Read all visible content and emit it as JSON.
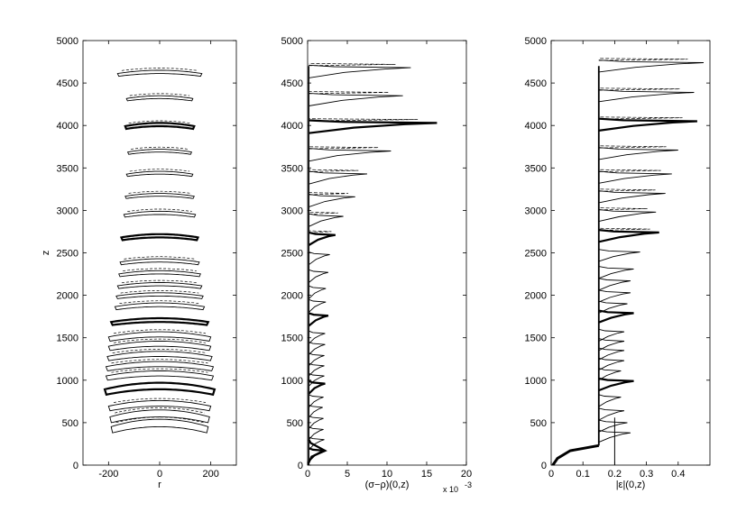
{
  "chart_data": [
    {
      "type": "line",
      "panel": "left",
      "xlabel": "r",
      "ylabel": "z",
      "xlim": [
        -300,
        300
      ],
      "ylim": [
        0,
        5000
      ],
      "xticks": [
        "-200",
        "0",
        "200"
      ],
      "yticks": [
        "0",
        "500",
        "1000",
        "1500",
        "2000",
        "2500",
        "3000",
        "3500",
        "4000",
        "4500",
        "5000"
      ],
      "grid": false,
      "description_series": "stacked bubble-shaped contours at successive times",
      "contours": [
        {
          "z_bottom": 380,
          "z_top": 540,
          "r_max": 190,
          "style": "solid"
        },
        {
          "z_bottom": 500,
          "z_top": 650,
          "r_max": 195,
          "style": "solid"
        },
        {
          "z_bottom": 640,
          "z_top": 760,
          "r_max": 200,
          "style": "solid"
        },
        {
          "z_bottom": 830,
          "z_top": 970,
          "r_max": 215,
          "style": "bold"
        },
        {
          "z_bottom": 1000,
          "z_top": 1110,
          "r_max": 210,
          "style": "solid"
        },
        {
          "z_bottom": 1110,
          "z_top": 1220,
          "r_max": 210,
          "style": "solid"
        },
        {
          "z_bottom": 1230,
          "z_top": 1340,
          "r_max": 205,
          "style": "solid"
        },
        {
          "z_bottom": 1350,
          "z_top": 1460,
          "r_max": 200,
          "style": "solid"
        },
        {
          "z_bottom": 1460,
          "z_top": 1570,
          "r_max": 200,
          "style": "solid"
        },
        {
          "z_bottom": 1650,
          "z_top": 1730,
          "r_max": 190,
          "style": "bold"
        },
        {
          "z_bottom": 1830,
          "z_top": 1910,
          "r_max": 175,
          "style": "solid"
        },
        {
          "z_bottom": 1960,
          "z_top": 2030,
          "r_max": 170,
          "style": "solid"
        },
        {
          "z_bottom": 2080,
          "z_top": 2150,
          "r_max": 165,
          "style": "solid"
        },
        {
          "z_bottom": 2220,
          "z_top": 2290,
          "r_max": 160,
          "style": "solid"
        },
        {
          "z_bottom": 2360,
          "z_top": 2430,
          "r_max": 155,
          "style": "solid"
        },
        {
          "z_bottom": 2650,
          "z_top": 2720,
          "r_max": 150,
          "style": "bold"
        },
        {
          "z_bottom": 2920,
          "z_top": 2990,
          "r_max": 140,
          "style": "solid"
        },
        {
          "z_bottom": 3140,
          "z_top": 3200,
          "r_max": 135,
          "style": "solid"
        },
        {
          "z_bottom": 3400,
          "z_top": 3460,
          "r_max": 130,
          "style": "solid"
        },
        {
          "z_bottom": 3660,
          "z_top": 3720,
          "r_max": 125,
          "style": "solid"
        },
        {
          "z_bottom": 3960,
          "z_top": 4030,
          "r_max": 135,
          "style": "bold"
        },
        {
          "z_bottom": 4290,
          "z_top": 4350,
          "r_max": 130,
          "style": "solid"
        },
        {
          "z_bottom": 4580,
          "z_top": 4650,
          "r_max": 165,
          "style": "solid"
        }
      ]
    },
    {
      "type": "line",
      "panel": "middle",
      "xlabel": "(σ−ρ)(0,z)",
      "ylabel": "",
      "xlim": [
        0,
        20
      ],
      "ylim": [
        0,
        5000
      ],
      "xticks": [
        "0",
        "5",
        "10",
        "15",
        "20"
      ],
      "yticks": [
        "0",
        "500",
        "1000",
        "1500",
        "2000",
        "2500",
        "3000",
        "3500",
        "4000",
        "4500",
        "5000"
      ],
      "x_multiplier": "x 10",
      "x_multiplier_exp": "-3",
      "grid": false,
      "peaks": [
        {
          "z": 170,
          "value": 2.2,
          "style": "bold"
        },
        {
          "z": 300,
          "value": 2.1,
          "style": "solid"
        },
        {
          "z": 420,
          "value": 2.0,
          "style": "solid"
        },
        {
          "z": 550,
          "value": 2.0,
          "style": "solid"
        },
        {
          "z": 680,
          "value": 1.9,
          "style": "solid"
        },
        {
          "z": 800,
          "value": 2.0,
          "style": "solid"
        },
        {
          "z": 960,
          "value": 2.2,
          "style": "bold"
        },
        {
          "z": 1050,
          "value": 2.1,
          "style": "solid"
        },
        {
          "z": 1170,
          "value": 2.1,
          "style": "solid"
        },
        {
          "z": 1290,
          "value": 2.1,
          "style": "solid"
        },
        {
          "z": 1420,
          "value": 2.2,
          "style": "solid"
        },
        {
          "z": 1550,
          "value": 2.2,
          "style": "solid"
        },
        {
          "z": 1760,
          "value": 2.6,
          "style": "bold"
        },
        {
          "z": 1920,
          "value": 2.3,
          "style": "solid"
        },
        {
          "z": 2080,
          "value": 2.3,
          "style": "solid"
        },
        {
          "z": 2270,
          "value": 2.6,
          "style": "solid"
        },
        {
          "z": 2480,
          "value": 2.8,
          "style": "solid"
        },
        {
          "z": 2710,
          "value": 3.5,
          "style": "bold"
        },
        {
          "z": 2930,
          "value": 4.5,
          "style": "solid"
        },
        {
          "z": 3160,
          "value": 6.0,
          "style": "solid"
        },
        {
          "z": 3430,
          "value": 7.5,
          "style": "solid"
        },
        {
          "z": 3700,
          "value": 10.5,
          "style": "solid"
        },
        {
          "z": 4030,
          "value": 16.3,
          "style": "bold"
        },
        {
          "z": 4350,
          "value": 12.0,
          "style": "solid"
        },
        {
          "z": 4680,
          "value": 13.0,
          "style": "solid"
        }
      ]
    },
    {
      "type": "line",
      "panel": "right",
      "xlabel": "|ε|(0,z)",
      "ylabel": "",
      "xlim": [
        0,
        0.5
      ],
      "ylim": [
        0,
        5000
      ],
      "xticks": [
        "0",
        "0.1",
        "0.2",
        "0.3",
        "0.4"
      ],
      "yticks": [
        "0",
        "500",
        "1000",
        "1500",
        "2000",
        "2500",
        "3000",
        "3500",
        "4000",
        "4500",
        "5000"
      ],
      "grid": false,
      "baseline": 0.15,
      "peaks": [
        {
          "z": 380,
          "value": 0.25,
          "style": "solid"
        },
        {
          "z": 500,
          "value": 0.24,
          "style": "solid"
        },
        {
          "z": 640,
          "value": 0.23,
          "style": "solid"
        },
        {
          "z": 800,
          "value": 0.22,
          "style": "solid"
        },
        {
          "z": 990,
          "value": 0.26,
          "style": "bold"
        },
        {
          "z": 1110,
          "value": 0.22,
          "style": "solid"
        },
        {
          "z": 1230,
          "value": 0.23,
          "style": "solid"
        },
        {
          "z": 1350,
          "value": 0.23,
          "style": "solid"
        },
        {
          "z": 1460,
          "value": 0.23,
          "style": "solid"
        },
        {
          "z": 1570,
          "value": 0.23,
          "style": "solid"
        },
        {
          "z": 1790,
          "value": 0.26,
          "style": "bold"
        },
        {
          "z": 1900,
          "value": 0.24,
          "style": "solid"
        },
        {
          "z": 2030,
          "value": 0.25,
          "style": "solid"
        },
        {
          "z": 2170,
          "value": 0.25,
          "style": "solid"
        },
        {
          "z": 2310,
          "value": 0.26,
          "style": "solid"
        },
        {
          "z": 2510,
          "value": 0.28,
          "style": "solid"
        },
        {
          "z": 2740,
          "value": 0.34,
          "style": "bold"
        },
        {
          "z": 2980,
          "value": 0.33,
          "style": "solid"
        },
        {
          "z": 3200,
          "value": 0.36,
          "style": "solid"
        },
        {
          "z": 3430,
          "value": 0.38,
          "style": "solid"
        },
        {
          "z": 3710,
          "value": 0.4,
          "style": "solid"
        },
        {
          "z": 4050,
          "value": 0.46,
          "style": "bold"
        },
        {
          "z": 4390,
          "value": 0.45,
          "style": "solid"
        },
        {
          "z": 4740,
          "value": 0.48,
          "style": "solid"
        }
      ]
    }
  ]
}
